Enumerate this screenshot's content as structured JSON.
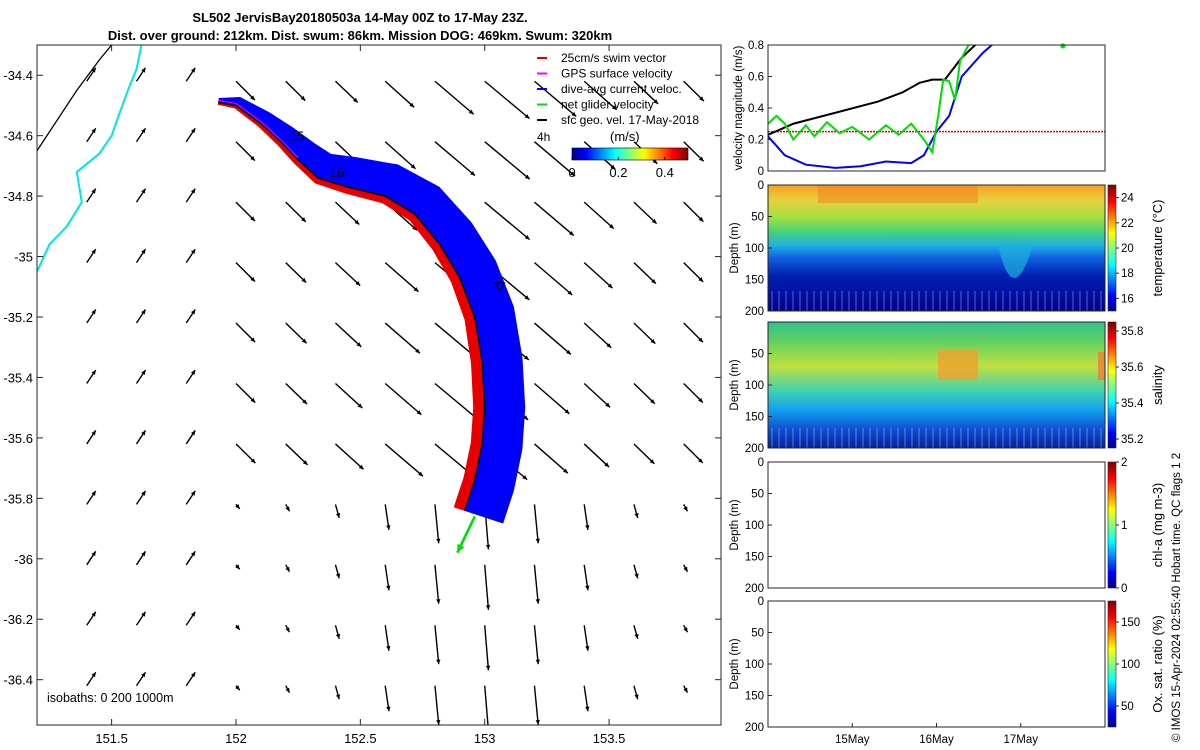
{
  "header": {
    "title_line1": "SL502 JervisBay20180503a 14-May 00Z to 17-May 23Z.",
    "title_line2": "Dist. over ground: 212km. Dist. swum: 86km. Mission DOG: 469km. Swum: 320km"
  },
  "footer": "© IMOS 15-Apr-2024 02:55:40 Hobart time. QC flags 1  2",
  "colors": {
    "swim": "#e60000",
    "gps": "#ff00ff",
    "current": "#0000ff",
    "net": "#00dd00",
    "sfc": "#000000",
    "coast": "#00e5e5"
  },
  "chart_data": [
    {
      "id": "map",
      "type": "map",
      "xticks": [
        151.5,
        152,
        152.5,
        153,
        153.5
      ],
      "yticks": [
        -34.4,
        -34.6,
        -34.8,
        -35,
        -35.2,
        -35.4,
        -35.6,
        -35.8,
        -36,
        -36.2,
        -36.4
      ],
      "xlim": [
        151.2,
        153.95
      ],
      "ylim": [
        -36.55,
        -34.3
      ],
      "legend": [
        {
          "label": "25cm/s swim vector",
          "color": "#e60000"
        },
        {
          "label": "GPS surface velocity",
          "color": "#ff00ff"
        },
        {
          "label": "dive-avg current veloc.",
          "color": "#0000ff"
        },
        {
          "label": "net glider velocity",
          "color": "#00dd00"
        },
        {
          "label": "sfc geo. vel. 17-May-2018",
          "color": "#000000"
        }
      ],
      "legend_position": "top-right",
      "colorbar": {
        "label": "(m/s)",
        "ticks": [
          0,
          0.2,
          0.4
        ],
        "range": [
          0,
          0.5
        ]
      },
      "scale_label": "4h",
      "isobaths_text": "isobaths: 0   200   1000m",
      "track": [
        [
          151.93,
          -34.49
        ],
        [
          152.0,
          -34.5
        ],
        [
          152.1,
          -34.56
        ],
        [
          152.18,
          -34.62
        ],
        [
          152.25,
          -34.68
        ],
        [
          152.33,
          -34.74
        ],
        [
          152.45,
          -34.77
        ],
        [
          152.6,
          -34.8
        ],
        [
          152.72,
          -34.86
        ],
        [
          152.82,
          -34.96
        ],
        [
          152.9,
          -35.07
        ],
        [
          152.96,
          -35.2
        ],
        [
          152.99,
          -35.35
        ],
        [
          153.0,
          -35.5
        ],
        [
          152.99,
          -35.62
        ],
        [
          152.96,
          -35.74
        ],
        [
          152.92,
          -35.84
        ]
      ],
      "day_labels": [
        {
          "text": "15",
          "lon": 152.2,
          "lat": -34.6
        },
        {
          "text": "16",
          "lon": 152.36,
          "lat": -34.72
        }
      ],
      "net_velocity_arrow": {
        "from": [
          152.96,
          -35.86
        ],
        "to": [
          152.89,
          -35.98
        ]
      }
    },
    {
      "id": "velocity",
      "type": "line",
      "ylabel": "velocity magnitude (m/s)",
      "ylim": [
        0,
        0.8
      ],
      "yticks": [
        0,
        0.2,
        0.4,
        0.6,
        0.8
      ],
      "xlim": [
        14.0,
        18.0
      ],
      "series": [
        {
          "name": "swim",
          "color": "#e60000",
          "x": [
            14.0,
            18.0
          ],
          "y": [
            0.25,
            0.25
          ]
        },
        {
          "name": "sfc geo",
          "color": "#000000",
          "x": [
            14.0,
            14.3,
            14.8,
            15.3,
            15.6,
            15.8,
            15.95,
            16.1,
            16.3,
            16.5
          ],
          "y": [
            0.23,
            0.3,
            0.37,
            0.44,
            0.5,
            0.56,
            0.58,
            0.58,
            0.72,
            0.82
          ]
        },
        {
          "name": "current",
          "color": "#0000ff",
          "x": [
            14.0,
            14.2,
            14.45,
            14.8,
            15.1,
            15.4,
            15.7,
            15.85,
            16.0,
            16.15,
            16.3,
            16.55,
            16.7
          ],
          "y": [
            0.22,
            0.1,
            0.04,
            0.02,
            0.03,
            0.06,
            0.05,
            0.1,
            0.25,
            0.35,
            0.6,
            0.75,
            0.82
          ]
        },
        {
          "name": "net",
          "color": "#00dd00",
          "x": [
            14.0,
            14.1,
            14.2,
            14.3,
            14.45,
            14.55,
            14.7,
            14.85,
            15.0,
            15.2,
            15.4,
            15.55,
            15.7,
            15.85,
            15.95,
            16.02,
            16.08,
            16.15,
            16.22,
            16.28,
            16.4
          ],
          "y": [
            0.3,
            0.35,
            0.3,
            0.2,
            0.29,
            0.22,
            0.31,
            0.24,
            0.28,
            0.2,
            0.29,
            0.23,
            0.3,
            0.2,
            0.12,
            0.35,
            0.58,
            0.57,
            0.45,
            0.7,
            0.82
          ]
        }
      ]
    },
    {
      "id": "temperature",
      "type": "heatmap",
      "ylabel": "Depth (m)",
      "ylim": [
        200,
        0
      ],
      "yticks": [
        0,
        50,
        100,
        150,
        200
      ],
      "colorbar_label": "temperature (°C)",
      "colorbar_ticks": [
        16,
        18,
        20,
        22,
        24
      ],
      "colorbar_range": [
        15,
        25
      ]
    },
    {
      "id": "salinity",
      "type": "heatmap",
      "ylabel": "Depth (m)",
      "ylim": [
        200,
        0
      ],
      "yticks": [
        50,
        100,
        150,
        200
      ],
      "colorbar_label": "salinity",
      "colorbar_ticks": [
        35.2,
        35.4,
        35.6,
        35.8
      ],
      "colorbar_range": [
        35.15,
        35.85
      ]
    },
    {
      "id": "chla",
      "type": "heatmap",
      "ylabel": "Depth (m)",
      "ylim": [
        200,
        0
      ],
      "yticks": [
        0,
        50,
        100,
        150,
        200
      ],
      "colorbar_label": "chl-a (mg m-3)",
      "colorbar_ticks": [
        0,
        1,
        2
      ],
      "colorbar_range": [
        0,
        2
      ]
    },
    {
      "id": "oxygen",
      "type": "heatmap",
      "ylabel": "Depth (m)",
      "ylim": [
        200,
        0
      ],
      "yticks": [
        0,
        50,
        100,
        150,
        200
      ],
      "colorbar_label": "Ox. sat. ratio (%)",
      "colorbar_ticks": [
        50,
        100,
        150
      ],
      "colorbar_range": [
        25,
        175
      ],
      "xticks": [
        "15May",
        "16May",
        "17May"
      ],
      "xtick_values": [
        15,
        16,
        17
      ]
    }
  ]
}
